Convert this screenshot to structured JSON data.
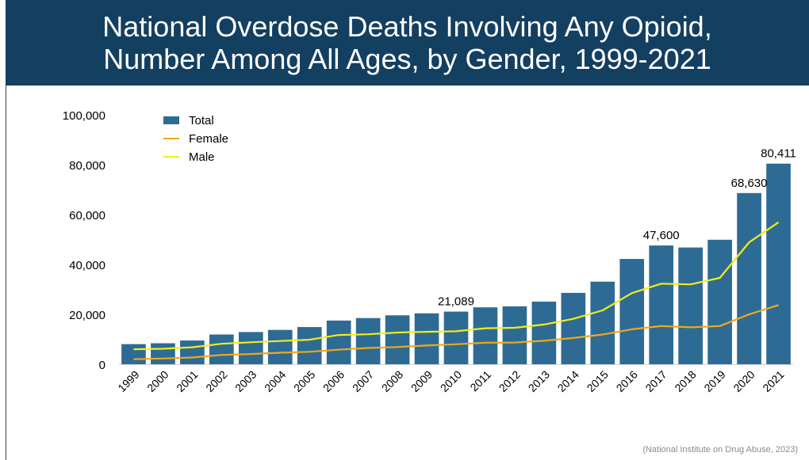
{
  "title_line1": "National Overdose Deaths Involving Any Opioid,",
  "title_line2": "Number Among All Ages, by Gender, 1999-2021",
  "source": "(National Institute on Drug Abuse, 2023)",
  "colors": {
    "header": "#133f61",
    "total": "#2e6b94",
    "female": "#f0a81a",
    "male": "#f2ee17"
  },
  "chart_data": {
    "type": "bar",
    "categories": [
      "1999",
      "2000",
      "2001",
      "2002",
      "2003",
      "2004",
      "2005",
      "2006",
      "2007",
      "2008",
      "2009",
      "2010",
      "2011",
      "2012",
      "2013",
      "2014",
      "2015",
      "2016",
      "2017",
      "2018",
      "2019",
      "2020",
      "2021"
    ],
    "ylim": [
      0,
      100000
    ],
    "yticks": [
      "0",
      "20,000",
      "40,000",
      "60,000",
      "80,000",
      "100,000"
    ],
    "grid": false,
    "legend_position": "top-left",
    "series": [
      {
        "name": "Total",
        "type": "bar",
        "values": [
          8050,
          8400,
          9500,
          11900,
          12900,
          13750,
          14900,
          17500,
          18500,
          19600,
          20400,
          21089,
          22800,
          23200,
          25100,
          28600,
          33100,
          42200,
          47600,
          46800,
          49900,
          68630,
          80411
        ]
      },
      {
        "name": "Female",
        "type": "line",
        "values": [
          2000,
          2300,
          2700,
          3700,
          4100,
          4600,
          5000,
          5800,
          6500,
          6900,
          7500,
          8000,
          8600,
          8700,
          9400,
          10500,
          11900,
          14000,
          15300,
          14800,
          15300,
          20000,
          23700
        ]
      },
      {
        "name": "Male",
        "type": "line",
        "values": [
          6000,
          6200,
          6800,
          8200,
          8800,
          9300,
          9800,
          11700,
          12000,
          12700,
          13000,
          13200,
          14400,
          14600,
          15900,
          18200,
          21600,
          28500,
          32300,
          32000,
          34600,
          48900,
          56900
        ]
      }
    ],
    "data_labels": [
      {
        "category": "2010",
        "text": "21,089"
      },
      {
        "category": "2017",
        "text": "47,600"
      },
      {
        "category": "2020",
        "text": "68,630"
      },
      {
        "category": "2021",
        "text": "80,411"
      }
    ]
  }
}
